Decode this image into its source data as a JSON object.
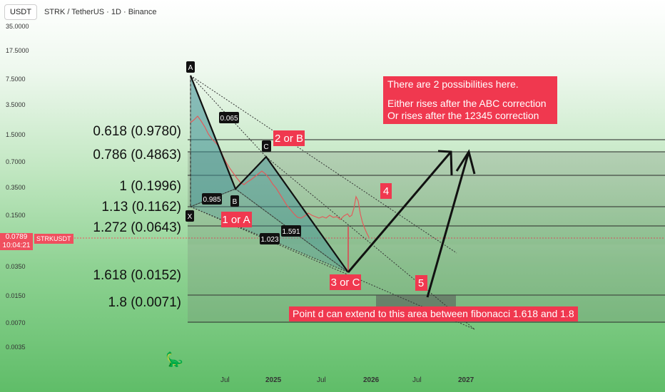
{
  "header": {
    "currency_button": "USDT",
    "symbol_title": "STRK / TetherUS · 1D · Binance"
  },
  "price_axis": [
    "35.0000",
    "17.5000",
    "7.5000",
    "3.5000",
    "1.5000",
    "0.7000",
    "0.3500",
    "0.1500",
    "0.0350",
    "0.0150",
    "0.0070",
    "0.0035"
  ],
  "price_tag": {
    "price": "0.0789",
    "countdown": "10:04:21",
    "symbol": "STRKUSDT"
  },
  "time_axis": [
    "Jul",
    "2025",
    "Jul",
    "2026",
    "Jul",
    "2027"
  ],
  "fib_levels": [
    {
      "label": "0.618 (0.9780)"
    },
    {
      "label": "0.786 (0.4863)"
    },
    {
      "label": "1 (0.1996)"
    },
    {
      "label": "1.13 (0.1162)"
    },
    {
      "label": "1.272 (0.0643)"
    },
    {
      "label": "1.618 (0.0152)"
    },
    {
      "label": "1.8 (0.0071)"
    }
  ],
  "pattern_points": [
    "A",
    "B",
    "C",
    "X"
  ],
  "ratios": [
    "0.065",
    "0.985",
    "1.023",
    "1.591"
  ],
  "wave_labels": [
    "2 or B",
    "1 or A",
    "3 or C",
    "4",
    "5"
  ],
  "notes": {
    "possibilities": [
      "There are 2 possibilities here.",
      "Either rises after the ABC correction",
      "Or rises after the 12345 correction"
    ],
    "point_d": "Point d can extend to this area between fibonacci 1.618 and 1.8"
  },
  "colors": {
    "accent_red": "#f0384f",
    "triangle_fill": "#4a9a9a",
    "line": "#111111"
  }
}
